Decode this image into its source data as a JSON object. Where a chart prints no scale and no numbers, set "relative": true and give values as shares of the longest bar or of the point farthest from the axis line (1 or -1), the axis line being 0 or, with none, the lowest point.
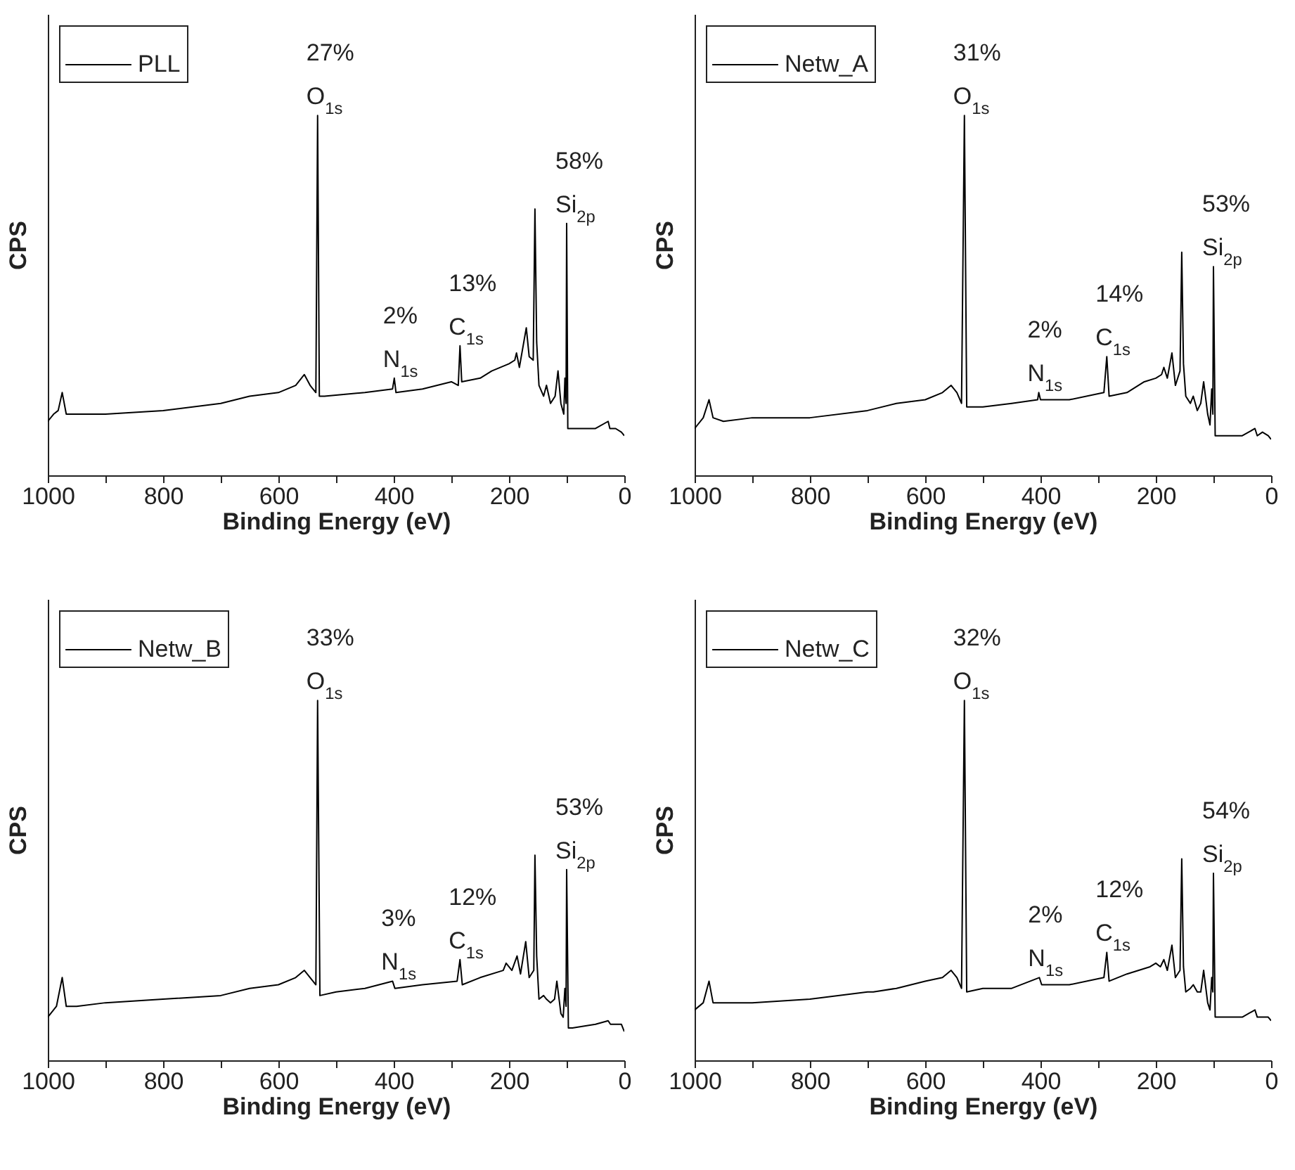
{
  "chart_data": [
    {
      "type": "line",
      "relative": true,
      "xlabel": "Binding Energy (eV)",
      "ylabel": "CPS",
      "xlim": [
        1000,
        0
      ],
      "xticks": [
        1000,
        {
          "value": 900,
          "label": null
        },
        800,
        {
          "value": 700,
          "label": null
        },
        600,
        {
          "value": 500,
          "label": null
        },
        400,
        {
          "value": 300,
          "label": null
        },
        200,
        {
          "value": 100,
          "label": null
        },
        0
      ],
      "legend": "top left",
      "x": [
        1000,
        990,
        982,
        975,
        968,
        960,
        900,
        800,
        700,
        650,
        600,
        570,
        555,
        545,
        535,
        532,
        529,
        520,
        450,
        402,
        399,
        396,
        350,
        300,
        288,
        285,
        282,
        250,
        230,
        200,
        190,
        187,
        182,
        170,
        165,
        158,
        155,
        152,
        148,
        140,
        135,
        128,
        120,
        115,
        110,
        105,
        103,
        101,
        100,
        98,
        95,
        50,
        28,
        25,
        15,
        5,
        0
      ],
      "series": [
        {
          "name": "PLL",
          "color": "#000000",
          "values": [
            0.15,
            0.17,
            0.18,
            0.23,
            0.17,
            0.17,
            0.17,
            0.18,
            0.2,
            0.22,
            0.23,
            0.25,
            0.28,
            0.25,
            0.23,
            1,
            0.22,
            0.22,
            0.23,
            0.24,
            0.27,
            0.23,
            0.24,
            0.26,
            0.25,
            0.36,
            0.26,
            0.27,
            0.29,
            0.31,
            0.32,
            0.34,
            0.3,
            0.41,
            0.33,
            0.32,
            0.74,
            0.37,
            0.25,
            0.22,
            0.25,
            0.2,
            0.22,
            0.29,
            0.2,
            0.17,
            0.27,
            0.2,
            0.7,
            0.13,
            0.13,
            0.13,
            0.15,
            0.13,
            0.13,
            0.12,
            0.11
          ]
        }
      ],
      "annotations": [
        {
          "text": "27%",
          "x": 532,
          "y": 1
        },
        {
          "text": "O$_{1s}$",
          "x": 532,
          "y": 1
        },
        {
          "text": "2%",
          "x": 399,
          "y": 0.27
        },
        {
          "text": "N$_{1s}$",
          "x": 399,
          "y": 0.27
        },
        {
          "text": "13%",
          "x": 285,
          "y": 0.36
        },
        {
          "text": "C$_{1s}$",
          "x": 285,
          "y": 0.36
        },
        {
          "text": "58%",
          "x": 100,
          "y": 0.7
        },
        {
          "text": "Si$_{2p}$",
          "x": 100,
          "y": 0.7
        }
      ]
    },
    {
      "type": "line",
      "relative": true,
      "xlabel": "Binding Energy (eV)",
      "ylabel": "CPS",
      "xlim": [
        1000,
        0
      ],
      "xticks": [
        1000,
        {
          "value": 900,
          "label": null
        },
        800,
        {
          "value": 700,
          "label": null
        },
        600,
        {
          "value": 500,
          "label": null
        },
        400,
        {
          "value": 300,
          "label": null
        },
        200,
        {
          "value": 100,
          "label": null
        },
        0
      ],
      "legend": "top left",
      "x": [
        1000,
        985,
        975,
        968,
        950,
        900,
        800,
        700,
        650,
        600,
        570,
        555,
        545,
        537,
        532,
        528,
        500,
        450,
        405,
        403,
        400,
        350,
        290,
        285,
        281,
        250,
        220,
        200,
        190,
        186,
        180,
        172,
        166,
        158,
        155,
        152,
        148,
        140,
        135,
        128,
        122,
        117,
        110,
        106,
        103,
        101,
        100,
        97,
        90,
        50,
        28,
        24,
        15,
        5,
        0
      ],
      "series": [
        {
          "name": "Netw_A",
          "color": "#000000",
          "values": [
            0.13,
            0.16,
            0.21,
            0.16,
            0.15,
            0.16,
            0.16,
            0.18,
            0.2,
            0.21,
            0.23,
            0.25,
            0.23,
            0.2,
            1,
            0.19,
            0.19,
            0.2,
            0.21,
            0.23,
            0.21,
            0.21,
            0.23,
            0.33,
            0.22,
            0.23,
            0.26,
            0.27,
            0.28,
            0.3,
            0.27,
            0.34,
            0.25,
            0.29,
            0.62,
            0.31,
            0.22,
            0.2,
            0.22,
            0.18,
            0.2,
            0.26,
            0.17,
            0.14,
            0.24,
            0.17,
            0.58,
            0.11,
            0.11,
            0.11,
            0.13,
            0.11,
            0.12,
            0.11,
            0.1
          ]
        }
      ],
      "annotations": [
        {
          "text": "31%",
          "x": 532,
          "y": 1
        },
        {
          "text": "O$_{1s}$",
          "x": 532,
          "y": 1
        },
        {
          "text": "2%",
          "x": 403,
          "y": 0.23
        },
        {
          "text": "N$_{1s}$",
          "x": 403,
          "y": 0.23
        },
        {
          "text": "14%",
          "x": 285,
          "y": 0.33
        },
        {
          "text": "C$_{1s}$",
          "x": 285,
          "y": 0.33
        },
        {
          "text": "53%",
          "x": 100,
          "y": 0.58
        },
        {
          "text": "Si$_{2p}$",
          "x": 100,
          "y": 0.58
        }
      ]
    },
    {
      "type": "line",
      "relative": true,
      "xlabel": "Binding Energy (eV)",
      "ylabel": "CPS",
      "xlim": [
        1000,
        0
      ],
      "xticks": [
        1000,
        {
          "value": 900,
          "label": null
        },
        800,
        {
          "value": 700,
          "label": null
        },
        600,
        {
          "value": 500,
          "label": null
        },
        400,
        {
          "value": 300,
          "label": null
        },
        200,
        {
          "value": 100,
          "label": null
        },
        0
      ],
      "legend": "top left",
      "x": [
        1000,
        985,
        975,
        968,
        950,
        900,
        800,
        700,
        650,
        600,
        570,
        555,
        545,
        535,
        532,
        528,
        500,
        450,
        402,
        398,
        350,
        290,
        285,
        281,
        250,
        210,
        205,
        195,
        186,
        180,
        171,
        165,
        157,
        155,
        152,
        148,
        140,
        135,
        128,
        121,
        117,
        110,
        106,
        103,
        101,
        100,
        97,
        90,
        50,
        28,
        24,
        15,
        5,
        0
      ],
      "series": [
        {
          "name": "Netw_B",
          "color": "#000000",
          "values": [
            0.12,
            0.15,
            0.23,
            0.15,
            0.15,
            0.16,
            0.17,
            0.18,
            0.2,
            0.21,
            0.23,
            0.25,
            0.23,
            0.21,
            1,
            0.18,
            0.19,
            0.2,
            0.22,
            0.2,
            0.21,
            0.22,
            0.28,
            0.21,
            0.23,
            0.25,
            0.27,
            0.25,
            0.29,
            0.24,
            0.33,
            0.23,
            0.25,
            0.57,
            0.29,
            0.17,
            0.18,
            0.17,
            0.16,
            0.17,
            0.22,
            0.13,
            0.12,
            0.2,
            0.15,
            0.53,
            0.09,
            0.09,
            0.1,
            0.11,
            0.1,
            0.1,
            0.1,
            0.08
          ]
        }
      ],
      "annotations": [
        {
          "text": "33%",
          "x": 532,
          "y": 1
        },
        {
          "text": "O$_{1s}$",
          "x": 532,
          "y": 1
        },
        {
          "text": "3%",
          "x": 402,
          "y": 0.22
        },
        {
          "text": "N$_{1s}$",
          "x": 402,
          "y": 0.22
        },
        {
          "text": "12%",
          "x": 285,
          "y": 0.28
        },
        {
          "text": "C$_{1s}$",
          "x": 285,
          "y": 0.28
        },
        {
          "text": "53%",
          "x": 100,
          "y": 0.53
        },
        {
          "text": "Si$_{2p}$",
          "x": 100,
          "y": 0.53
        }
      ]
    },
    {
      "type": "line",
      "relative": true,
      "xlabel": "Binding Energy (eV)",
      "ylabel": "CPS",
      "xlim": [
        1000,
        0
      ],
      "xticks": [
        1000,
        {
          "value": 900,
          "label": null
        },
        800,
        {
          "value": 700,
          "label": null
        },
        600,
        {
          "value": 500,
          "label": null
        },
        400,
        {
          "value": 300,
          "label": null
        },
        200,
        {
          "value": 100,
          "label": null
        },
        0
      ],
      "legend": "top left",
      "x": [
        1000,
        985,
        975,
        968,
        950,
        900,
        800,
        700,
        690,
        650,
        600,
        570,
        555,
        545,
        537,
        532,
        528,
        500,
        450,
        402,
        398,
        350,
        290,
        285,
        281,
        250,
        210,
        200,
        192,
        186,
        180,
        172,
        166,
        158,
        155,
        152,
        148,
        140,
        135,
        128,
        122,
        117,
        110,
        106,
        103,
        101,
        100,
        97,
        90,
        50,
        28,
        24,
        15,
        5,
        0
      ],
      "series": [
        {
          "name": "Netw_C",
          "color": "#000000",
          "values": [
            0.14,
            0.16,
            0.22,
            0.16,
            0.16,
            0.16,
            0.17,
            0.19,
            0.19,
            0.2,
            0.22,
            0.23,
            0.25,
            0.23,
            0.2,
            1,
            0.19,
            0.2,
            0.2,
            0.23,
            0.21,
            0.21,
            0.23,
            0.3,
            0.22,
            0.24,
            0.26,
            0.27,
            0.26,
            0.28,
            0.25,
            0.32,
            0.23,
            0.25,
            0.56,
            0.26,
            0.19,
            0.2,
            0.21,
            0.19,
            0.19,
            0.25,
            0.16,
            0.14,
            0.23,
            0.19,
            0.52,
            0.12,
            0.12,
            0.12,
            0.14,
            0.12,
            0.12,
            0.12,
            0.11
          ]
        }
      ],
      "annotations": [
        {
          "text": "32%",
          "x": 532,
          "y": 1
        },
        {
          "text": "O$_{1s}$",
          "x": 532,
          "y": 1
        },
        {
          "text": "2%",
          "x": 402,
          "y": 0.23
        },
        {
          "text": "N$_{1s}$",
          "x": 402,
          "y": 0.23
        },
        {
          "text": "12%",
          "x": 285,
          "y": 0.3
        },
        {
          "text": "C$_{1s}$",
          "x": 285,
          "y": 0.3
        },
        {
          "text": "54%",
          "x": 100,
          "y": 0.52
        },
        {
          "text": "Si$_{2p}$",
          "x": 100,
          "y": 0.52
        }
      ]
    }
  ]
}
